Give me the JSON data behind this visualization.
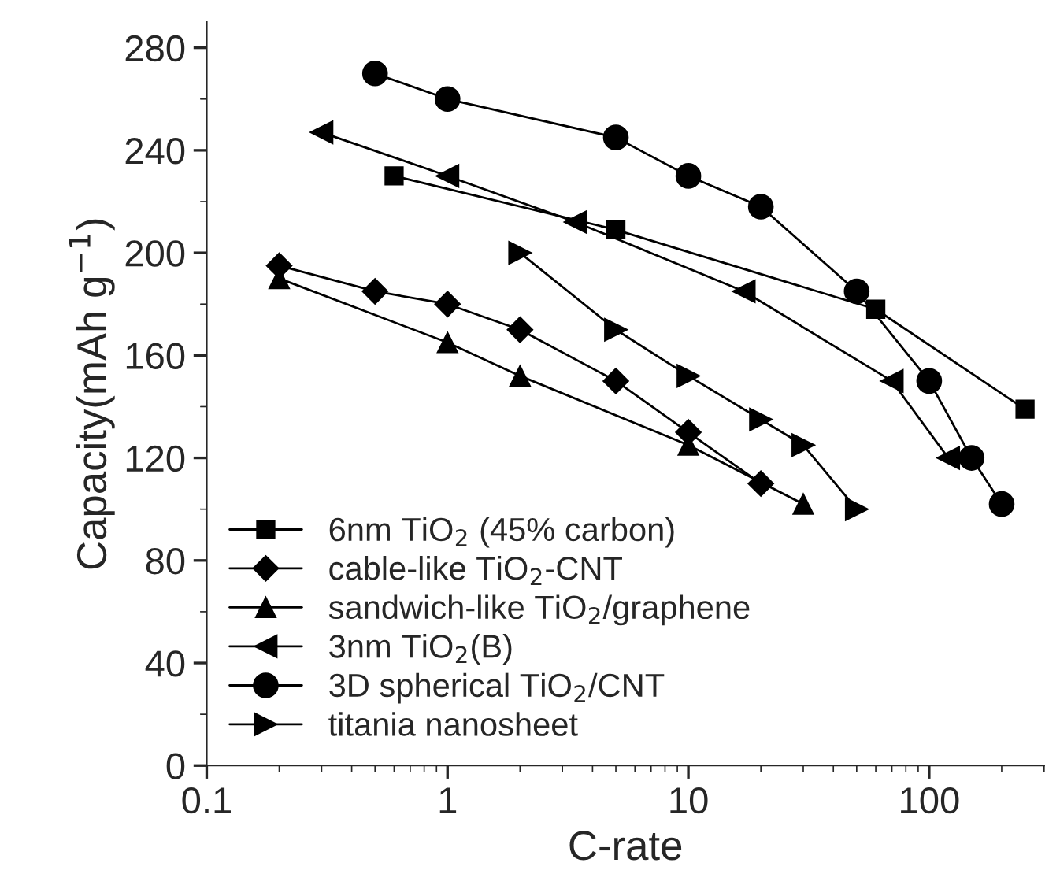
{
  "chart_data": {
    "type": "line",
    "xlabel": "C-rate",
    "ylabel": "Capacity(mAh g$^{−1}$)",
    "log": "x",
    "xlim": [
      0.1,
      300
    ],
    "xticks": [
      0.1,
      1,
      10,
      100
    ],
    "ylim": [
      0,
      290
    ],
    "yticks": [
      0,
      40,
      80,
      120,
      160,
      200,
      240,
      280
    ],
    "grid": false,
    "legend": "bottom left",
    "line_style": "solid",
    "series": [
      {
        "name": "6nm TiO$_{2}$ (45% carbon)",
        "color": "#000000",
        "marker": "square",
        "x": [
          0.6,
          5,
          60,
          250
        ],
        "values": [
          230,
          209,
          178,
          139
        ]
      },
      {
        "name": "cable-like TiO$_{2}$-CNT",
        "color": "#000000",
        "marker": "diamond",
        "x": [
          0.2,
          0.5,
          1,
          2,
          5,
          10,
          20
        ],
        "values": [
          195,
          185,
          180,
          170,
          150,
          130,
          110
        ]
      },
      {
        "name": "sandwich-like TiO$_{2}$/graphene",
        "color": "#000000",
        "marker": "triangle",
        "x": [
          0.2,
          1,
          2,
          10,
          30
        ],
        "values": [
          190,
          165,
          152,
          125,
          102
        ]
      },
      {
        "name": "3nm TiO$_{2}$(B)",
        "color": "#000000",
        "marker": "triangle_left",
        "x": [
          0.3,
          1,
          3.4,
          17,
          70,
          120
        ],
        "values": [
          247,
          230,
          212,
          185,
          150,
          120
        ]
      },
      {
        "name": "3D spherical TiO$_{2}$/CNT",
        "color": "#000000",
        "marker": "circle",
        "x": [
          0.5,
          1,
          5,
          10,
          20,
          50,
          100,
          150,
          200
        ],
        "values": [
          270,
          260,
          245,
          230,
          218,
          185,
          150,
          120,
          102
        ]
      },
      {
        "name": "titania nanosheet",
        "color": "#000000",
        "marker": "triangle_right",
        "x": [
          2,
          5,
          10,
          20,
          30,
          50
        ],
        "values": [
          200,
          170,
          152,
          135,
          125,
          100
        ]
      }
    ]
  }
}
